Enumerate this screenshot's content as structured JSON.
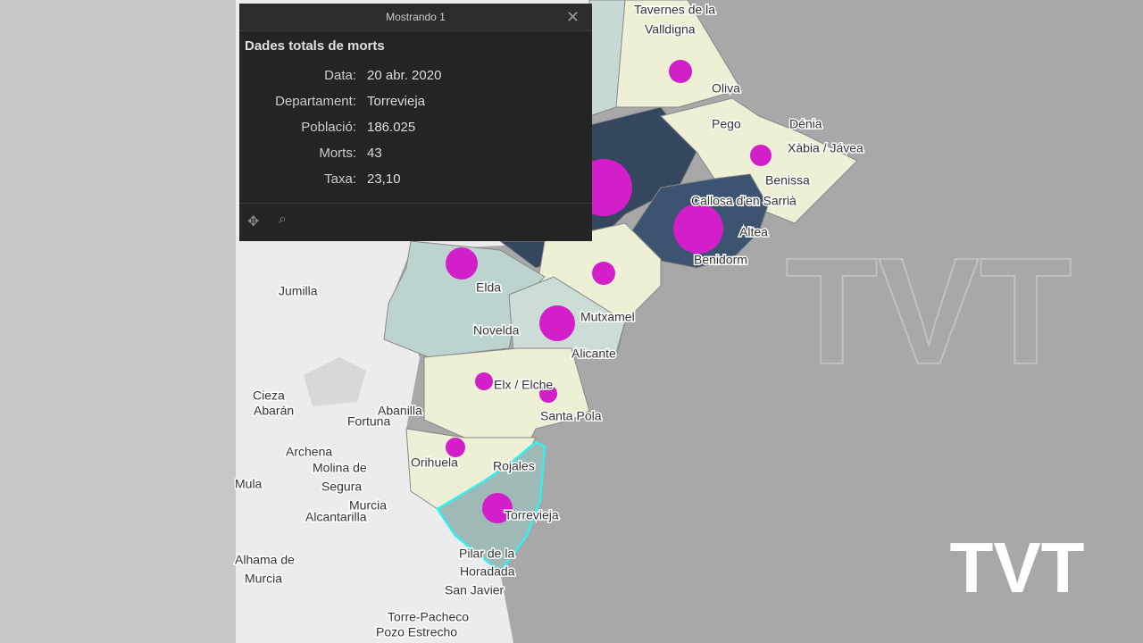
{
  "popup": {
    "header": "Mostrando 1",
    "title": "Dades totals de morts",
    "fields": [
      {
        "label": "Data:",
        "value": "20 abr. 2020"
      },
      {
        "label": "Departament:",
        "value": "Torrevieja"
      },
      {
        "label": "Població:",
        "value": "186.025"
      },
      {
        "label": "Morts:",
        "value": "43"
      },
      {
        "label": "Taxa:",
        "value": "23,10"
      }
    ]
  },
  "map_labels": [
    "Tavernes de la",
    "Valldigna",
    "Oliva",
    "Pego",
    "Dénia",
    "Xàbia / Jávea",
    "Benissa",
    "Callosa d'en Sarrià",
    "Altea",
    "Benidorm",
    "Jumilla",
    "Elda",
    "Novelda",
    "Mutxamel",
    "Alicante",
    "Cieza",
    "Abarán",
    "Abanilla",
    "Fortuna",
    "Archena",
    "Molina de",
    "Segura",
    "Elx / Elche",
    "Santa Pola",
    "Orihuela",
    "Rojales",
    "Torrevieja",
    "Alcantarilla",
    "Murcia",
    "Alhama de",
    "Murcia",
    "Pilar de la",
    "Horadada",
    "San Javier",
    "Torre-Pacheco",
    "Pozo Estrecho",
    "Mula"
  ],
  "logo": "TVT"
}
